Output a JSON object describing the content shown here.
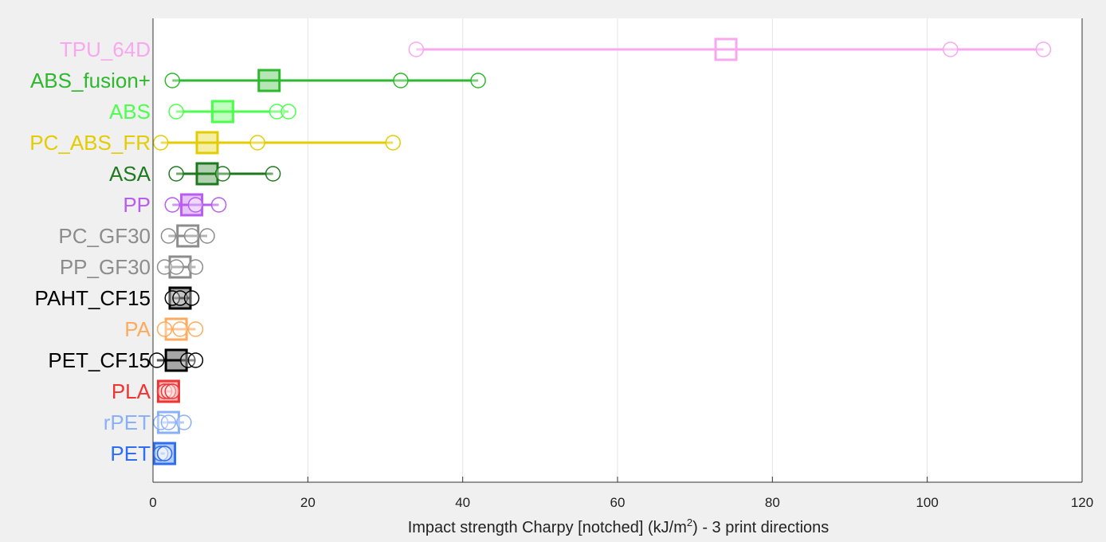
{
  "chart_data": {
    "type": "dot-range",
    "xlabel_main": "Impact strength Charpy [notched] (kJ/m",
    "xlabel_sup": "2",
    "xlabel_tail": ") - 3 print directions",
    "xlim": [
      0,
      120
    ],
    "xticks": [
      0,
      20,
      40,
      60,
      80,
      100,
      120
    ],
    "grid": "vertical",
    "categories": [
      {
        "name": "TPU_64D",
        "color": "#f7a8ef",
        "points": [
          34,
          103,
          115
        ],
        "mean": 74,
        "fill": false
      },
      {
        "name": "ABS_fusion+",
        "color": "#2db82d",
        "points": [
          2.5,
          32,
          42
        ],
        "mean": 15,
        "fill": true
      },
      {
        "name": "ABS",
        "color": "#4dff4d",
        "points": [
          3,
          16,
          17.5
        ],
        "mean": 9,
        "fill": true
      },
      {
        "name": "PC_ABS_FR",
        "color": "#e3cd00",
        "points": [
          1,
          13.5,
          31
        ],
        "mean": 7,
        "fill": true
      },
      {
        "name": "ASA",
        "color": "#1f7a1f",
        "points": [
          3,
          9,
          15.5
        ],
        "mean": 7,
        "fill": true
      },
      {
        "name": "PP",
        "color": "#b85cf2",
        "points": [
          2.5,
          5.5,
          8.5
        ],
        "mean": 5,
        "fill": true
      },
      {
        "name": "PC_GF30",
        "color": "#8c8c8c",
        "points": [
          2,
          5,
          7
        ],
        "mean": 4.5,
        "fill": false
      },
      {
        "name": "PP_GF30",
        "color": "#8c8c8c",
        "points": [
          1.5,
          3,
          5.5
        ],
        "mean": 3.5,
        "fill": false
      },
      {
        "name": "PAHT_CF15",
        "color": "#000000",
        "points": [
          2.5,
          3.5,
          5
        ],
        "mean": 3.5,
        "fill": true
      },
      {
        "name": "PA",
        "color": "#ffaa5c",
        "points": [
          1.5,
          3.5,
          5.5
        ],
        "mean": 3,
        "fill": false
      },
      {
        "name": "PET_CF15",
        "color": "#000000",
        "points": [
          0.5,
          4.5,
          5.5
        ],
        "mean": 3,
        "fill": true
      },
      {
        "name": "PLA",
        "color": "#f23333",
        "points": [
          1.5,
          2,
          2.5
        ],
        "mean": 2,
        "fill": true
      },
      {
        "name": "rPET",
        "color": "#8ab0f7",
        "points": [
          1,
          2,
          4
        ],
        "mean": 2,
        "fill": false
      },
      {
        "name": "PET",
        "color": "#2f6ef2",
        "points": [
          1,
          1.5,
          1.5
        ],
        "mean": 1.5,
        "fill": true
      }
    ]
  }
}
